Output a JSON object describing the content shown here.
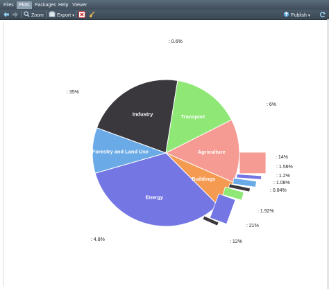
{
  "tabs": [
    {
      "label": "Files",
      "active": false
    },
    {
      "label": "Plots",
      "active": true
    },
    {
      "label": "Packages",
      "active": false
    },
    {
      "label": "Help",
      "active": false
    },
    {
      "label": "Viewer",
      "active": false
    }
  ],
  "toolbar": {
    "zoom_label": "Zoom",
    "export_label": "Export",
    "export_caret": "▾",
    "publish_label": "Publish",
    "publish_caret": "▾",
    "icons": [
      "back-arrow-icon",
      "forward-arrow-icon",
      "zoom-icon",
      "export-icon",
      "remove-plot-icon",
      "broom-icon",
      "publish-icon",
      "refresh-icon"
    ]
  },
  "chart_data": {
    "type": "pie",
    "title": "",
    "slices": [
      {
        "label": "Industry",
        "value": 22,
        "color": "#3a383d"
      },
      {
        "label": "Transport",
        "value": 15,
        "color": "#8fe876"
      },
      {
        "label": "Agriculture",
        "value": 14,
        "color": "#f59b93"
      },
      {
        "label": "Buildings",
        "value": 6,
        "color": "#f59a51"
      },
      {
        "label": "Energy",
        "value": 33,
        "color": "#7477e3"
      },
      {
        "label": "Forestry and Land Use",
        "value": 10,
        "color": "#6aaae6"
      }
    ],
    "exploded_bar": [
      {
        "value": 5,
        "color": "#f59b93"
      },
      {
        "value": 1,
        "color": "#7477e3"
      },
      {
        "value": 1.5,
        "color": "#6aaae6"
      },
      {
        "value": 1,
        "color": "#3a383d"
      },
      {
        "value": 2,
        "color": "#8fe876"
      },
      {
        "value": 6,
        "color": "#7477e3"
      },
      {
        "value": 1,
        "color": "#3a383d"
      }
    ],
    "outer_labels": [
      ": 0.6%",
      ": 35%",
      ": 6%",
      ": 14%",
      ": 1.56%",
      ": 1.2%",
      ": 1.08%",
      ": 0.84%",
      ": 1.92%",
      ": 21%",
      ": 12%",
      ": 4.8%"
    ]
  }
}
